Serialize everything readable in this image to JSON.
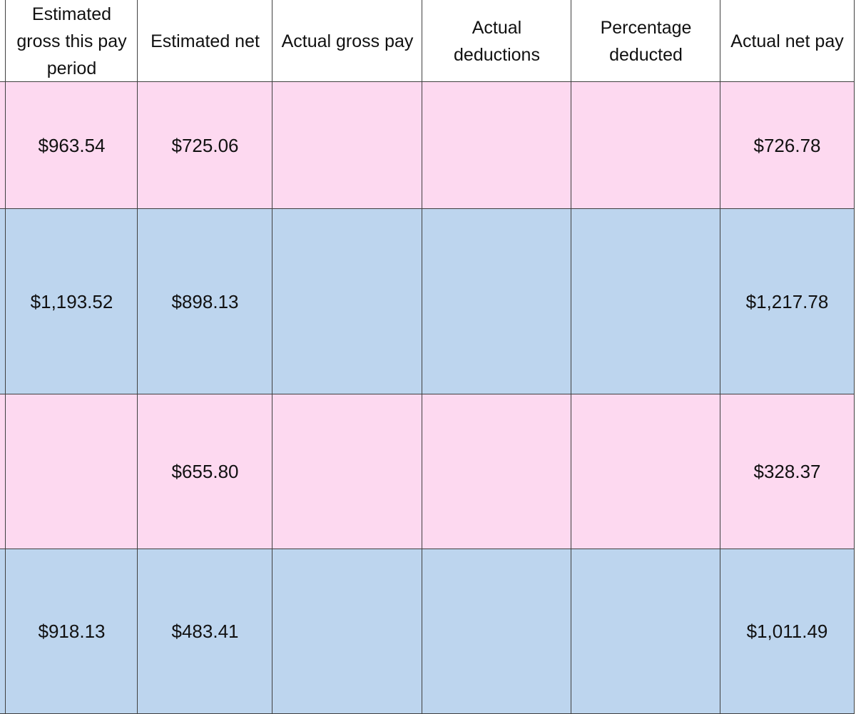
{
  "table": {
    "header": [
      "Estimated gross this pay period",
      "Estimated net",
      "Actual gross pay",
      "Actual deductions",
      "Percentage deducted",
      "Actual net pay"
    ],
    "rows": [
      [
        "$963.54",
        "$725.06",
        null,
        null,
        null,
        "$726.78"
      ],
      [
        "$1,193.52",
        "$898.13",
        null,
        null,
        null,
        "$1,217.78"
      ],
      [
        null,
        "$655.80",
        null,
        null,
        null,
        "$328.37"
      ],
      [
        "$918.13",
        "$483.41",
        null,
        null,
        null,
        "$1,011.49"
      ]
    ]
  }
}
